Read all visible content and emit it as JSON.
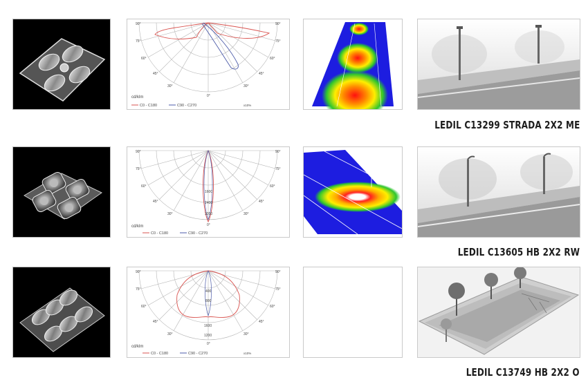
{
  "rows": [
    {
      "caption": "LEDIL C13299 STRADA 2X2 ME",
      "polar": {
        "angle_labels": [
          "90°",
          "75°",
          "60°",
          "45°",
          "30°",
          "0°",
          "30°",
          "45°",
          "60°",
          "75°",
          "90°"
        ],
        "values": [],
        "unit": "cd/klm",
        "legend_a": "C0 - C180",
        "legend_b": "C90 - C270",
        "scale_note": "x10%"
      },
      "has_isolux": true
    },
    {
      "caption": "LEDIL C13605 HB 2X2 RW",
      "polar": {
        "angle_labels": [
          "90°",
          "75°",
          "60°",
          "45°",
          "30°",
          "0°",
          "30°",
          "45°",
          "60°",
          "75°",
          "90°"
        ],
        "values": [
          "1600",
          "2400",
          "3200"
        ],
        "unit": "cd/klm",
        "legend_a": "C0 - C180",
        "legend_b": "C90 - C270",
        "scale_note": ""
      },
      "has_isolux": true
    },
    {
      "caption": "LEDIL C13749 HB 2X2 O",
      "polar": {
        "angle_labels": [
          "90°",
          "75°",
          "60°",
          "45°",
          "30°",
          "0°",
          "30°",
          "45°",
          "60°",
          "75°",
          "90°"
        ],
        "values": [
          "400",
          "800",
          "1600",
          "1200"
        ],
        "unit": "cd/klm",
        "legend_a": "C0 - C180",
        "legend_b": "C90 - C270",
        "scale_note": "x10%"
      },
      "has_isolux": false
    }
  ],
  "colors": {
    "c0_c180": "#d9534f",
    "c90_c270": "#4b5aa8",
    "grid": "#b5b5b5"
  }
}
